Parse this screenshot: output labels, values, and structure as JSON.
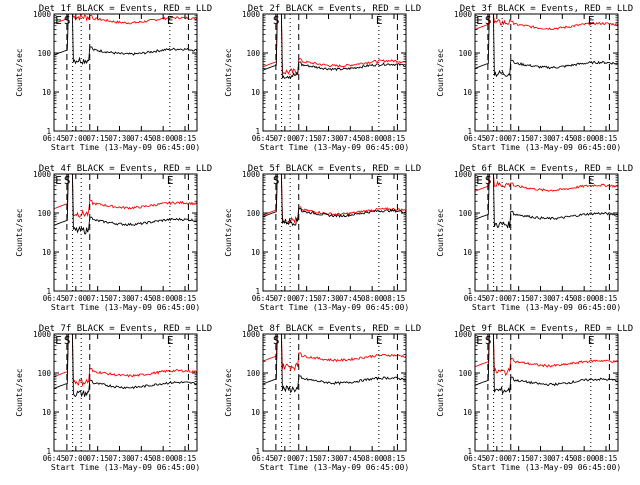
{
  "figure": {
    "description_free": true
  },
  "chart_data": [
    {
      "type": "line",
      "title": "Det 1f BLACK = Events, RED = LLD",
      "xlabel": "Start Time (13-May-09 06:45:00)",
      "ylabel": "Counts/sec",
      "xtick_labels": [
        "06:45",
        "07:00",
        "07:15",
        "07:30",
        "07:45",
        "08:00",
        "08:15"
      ],
      "ytick_labels": [
        "1",
        "10",
        "100",
        "1000"
      ],
      "ylim": [
        1,
        1000
      ],
      "yscale": "log",
      "markers": [
        "E",
        "S",
        "E"
      ],
      "series": [
        {
          "color": "#ff0000",
          "plateau": 700
        },
        {
          "color": "#000000",
          "plateau": 110
        }
      ]
    },
    {
      "type": "line",
      "title": "Det 2f BLACK = Events, RED = LLD",
      "xlabel": "Start Time (13-May-09 06:45:00)",
      "ylabel": "Counts/sec",
      "xtick_labels": [
        "06:45",
        "07:00",
        "07:15",
        "07:30",
        "07:45",
        "08:00",
        "08:15"
      ],
      "ytick_labels": [
        "1",
        "10",
        "100",
        "1000"
      ],
      "ylim": [
        1,
        1000
      ],
      "yscale": "log",
      "markers": [
        "S",
        "E"
      ],
      "series": [
        {
          "color": "#ff0000",
          "plateau": 55
        },
        {
          "color": "#000000",
          "plateau": 45
        }
      ]
    },
    {
      "type": "line",
      "title": "Det 3f BLACK = Events, RED = LLD",
      "xlabel": "Start Time (13-May-09 06:45:00)",
      "ylabel": "Counts/sec",
      "xtick_labels": [
        "06:45",
        "07:00",
        "07:15",
        "07:30",
        "07:45",
        "08:00",
        "08:15"
      ],
      "ytick_labels": [
        "1",
        "10",
        "100",
        "1000"
      ],
      "ylim": [
        1,
        1000
      ],
      "yscale": "log",
      "markers": [
        "E",
        "S",
        "E"
      ],
      "series": [
        {
          "color": "#ff0000",
          "plateau": 500
        },
        {
          "color": "#000000",
          "plateau": 50
        }
      ]
    },
    {
      "type": "line",
      "title": "Det 4f BLACK = Events, RED = LLD",
      "xlabel": "Start Time (13-May-09 06:45:00)",
      "ylabel": "Counts/sec",
      "xtick_labels": [
        "06:45",
        "07:00",
        "07:15",
        "07:30",
        "07:45",
        "08:00",
        "08:15"
      ],
      "ytick_labels": [
        "1",
        "10",
        "100",
        "1000"
      ],
      "ylim": [
        1,
        1000
      ],
      "yscale": "log",
      "markers": [
        "E",
        "S",
        "E"
      ],
      "series": [
        {
          "color": "#ff0000",
          "plateau": 160
        },
        {
          "color": "#000000",
          "plateau": 60
        }
      ]
    },
    {
      "type": "line",
      "title": "Det 5f BLACK = Events, RED = LLD",
      "xlabel": "Start Time (13-May-09 06:45:00)",
      "ylabel": "Counts/sec",
      "xtick_labels": [
        "06:45",
        "07:00",
        "07:15",
        "07:30",
        "07:45",
        "08:00",
        "08:15"
      ],
      "ytick_labels": [
        "1",
        "10",
        "100",
        "1000"
      ],
      "ylim": [
        1,
        1000
      ],
      "yscale": "log",
      "markers": [
        "S",
        "E"
      ],
      "series": [
        {
          "color": "#ff0000",
          "plateau": 110
        },
        {
          "color": "#000000",
          "plateau": 100
        }
      ]
    },
    {
      "type": "line",
      "title": "Det 6f BLACK = Events, RED = LLD",
      "xlabel": "Start Time (13-May-09 06:45:00)",
      "ylabel": "Counts/sec",
      "xtick_labels": [
        "06:45",
        "07:00",
        "07:15",
        "07:30",
        "07:45",
        "08:00",
        "08:15"
      ],
      "ytick_labels": [
        "1",
        "10",
        "100",
        "1000"
      ],
      "ylim": [
        1,
        1000
      ],
      "yscale": "log",
      "markers": [
        "E",
        "S",
        "E"
      ],
      "series": [
        {
          "color": "#ff0000",
          "plateau": 450
        },
        {
          "color": "#000000",
          "plateau": 85
        }
      ]
    },
    {
      "type": "line",
      "title": "Det 7f BLACK = Events, RED = LLD",
      "xlabel": "Start Time (13-May-09 06:45:00)",
      "ylabel": "Counts/sec",
      "xtick_labels": [
        "06:45",
        "07:00",
        "07:15",
        "07:30",
        "07:45",
        "08:00",
        "08:15"
      ],
      "ytick_labels": [
        "1",
        "10",
        "100",
        "1000"
      ],
      "ylim": [
        1,
        1000
      ],
      "yscale": "log",
      "markers": [
        "E",
        "S",
        "E"
      ],
      "series": [
        {
          "color": "#ff0000",
          "plateau": 100
        },
        {
          "color": "#000000",
          "plateau": 50
        }
      ]
    },
    {
      "type": "line",
      "title": "Det 8f BLACK = Events, RED = LLD",
      "xlabel": "Start Time (13-May-09 06:45:00)",
      "ylabel": "Counts/sec",
      "xtick_labels": [
        "06:45",
        "07:00",
        "07:15",
        "07:30",
        "07:45",
        "08:00",
        "08:15"
      ],
      "ytick_labels": [
        "1",
        "10",
        "100",
        "1000"
      ],
      "ylim": [
        1,
        1000
      ],
      "yscale": "log",
      "markers": [
        "S",
        "E"
      ],
      "series": [
        {
          "color": "#ff0000",
          "plateau": 250
        },
        {
          "color": "#000000",
          "plateau": 65
        }
      ]
    },
    {
      "type": "line",
      "title": "Det 9f BLACK = Events, RED = LLD",
      "xlabel": "Start Time (13-May-09 06:45:00)",
      "ylabel": "Counts/sec",
      "xtick_labels": [
        "06:45",
        "07:00",
        "07:15",
        "07:30",
        "07:45",
        "08:00",
        "08:15"
      ],
      "ytick_labels": [
        "1",
        "10",
        "100",
        "1000"
      ],
      "ylim": [
        1,
        1000
      ],
      "yscale": "log",
      "markers": [
        "E",
        "S",
        "E"
      ],
      "series": [
        {
          "color": "#ff0000",
          "plateau": 180
        },
        {
          "color": "#000000",
          "plateau": 60
        }
      ]
    }
  ]
}
